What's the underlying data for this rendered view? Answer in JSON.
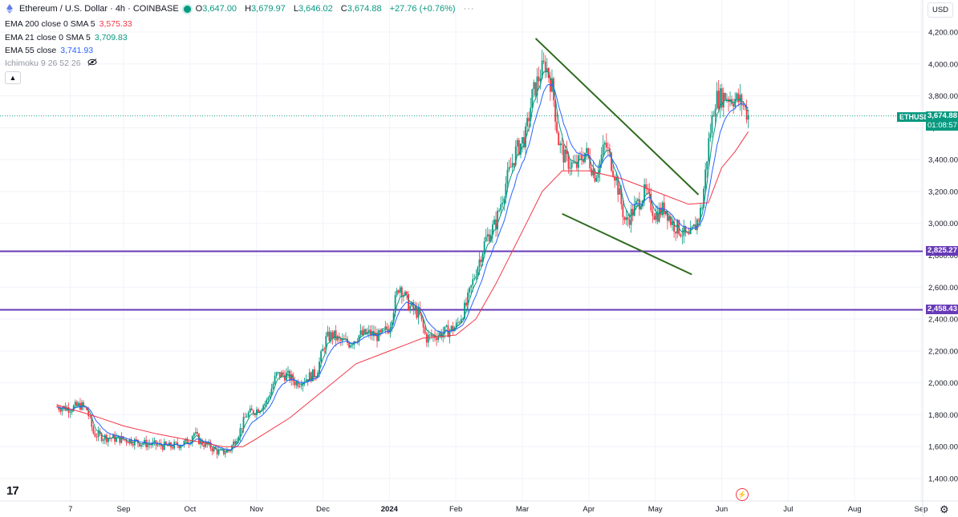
{
  "header": {
    "symbol_title": "Ethereum / U.S. Dollar · 4h · COINBASE",
    "open_label": "O",
    "open": "3,647.00",
    "high_label": "H",
    "high": "3,679.97",
    "low_label": "L",
    "low": "3,646.02",
    "close_label": "C",
    "close": "3,674.88",
    "change": "+27.76 (+0.76%)",
    "more": "···"
  },
  "indicators": [
    {
      "label": "EMA 200 close 0 SMA 5",
      "value": "3,575.33",
      "color": "#f23645"
    },
    {
      "label": "EMA 21 close 0 SMA 5",
      "value": "3,709.83",
      "color": "#089981"
    },
    {
      "label": "EMA 55 close",
      "value": "3,741.93",
      "color": "#2962ff"
    },
    {
      "label": "Ichimoku 9 26 52 26",
      "value": "",
      "color": "#9598a1"
    }
  ],
  "collapse_icon": "chevron-up-icon",
  "currency_button": "USD",
  "price_tag": {
    "symbol": "ETHUSD",
    "price": "3,674.88",
    "countdown": "01:08:57"
  },
  "horizontal_levels": [
    {
      "value": 2825.27,
      "label": "2,825.27",
      "color": "#673ab7"
    },
    {
      "value": 2458.43,
      "label": "2,458.43",
      "color": "#673ab7"
    }
  ],
  "colors": {
    "up": "#089981",
    "down": "#f23645",
    "ema21": "#089981",
    "ema55": "#2962ff",
    "ema200": "#f23645",
    "wedge": "#2e6b1e",
    "grid": "#f0f3fa",
    "axis_text": "#131722"
  },
  "chart_data": {
    "type": "candlestick",
    "timeframe": "4h",
    "y_ticks": [
      1400,
      1600,
      1800,
      2000,
      2200,
      2400,
      2600,
      2800,
      3000,
      3200,
      3400,
      3600,
      3800,
      4000,
      4200
    ],
    "y_tick_labels": [
      "1,400.00",
      "1,600.00",
      "1,800.00",
      "2,000.00",
      "2,200.00",
      "2,400.00",
      "2,600.00",
      "2,800.00",
      "3,000.00",
      "3,200.00",
      "3,400.00",
      "3,600.00",
      "3,800.00",
      "4,000.00",
      "4,200.00"
    ],
    "ylim": [
      1300,
      4300
    ],
    "x_labels": [
      "7",
      "Sep",
      "Oct",
      "Nov",
      "Dec",
      "2024",
      "Feb",
      "Mar",
      "Apr",
      "May",
      "Jun",
      "Jul",
      "Aug",
      "Sep"
    ],
    "x_label_months": [
      0.2,
      1,
      2,
      3,
      4,
      5,
      6,
      7,
      8,
      9,
      10,
      11,
      12,
      13
    ],
    "price_path": [
      [
        0.0,
        1850
      ],
      [
        0.2,
        1840
      ],
      [
        0.35,
        1860
      ],
      [
        0.45,
        1830
      ],
      [
        0.55,
        1680
      ],
      [
        0.7,
        1660
      ],
      [
        0.9,
        1650
      ],
      [
        1.1,
        1640
      ],
      [
        1.3,
        1620
      ],
      [
        1.5,
        1610
      ],
      [
        1.7,
        1600
      ],
      [
        1.9,
        1620
      ],
      [
        2.0,
        1640
      ],
      [
        2.05,
        1690
      ],
      [
        2.15,
        1630
      ],
      [
        2.3,
        1600
      ],
      [
        2.45,
        1560
      ],
      [
        2.6,
        1580
      ],
      [
        2.75,
        1700
      ],
      [
        2.85,
        1800
      ],
      [
        3.0,
        1830
      ],
      [
        3.15,
        1880
      ],
      [
        3.3,
        2050
      ],
      [
        3.45,
        2050
      ],
      [
        3.6,
        2000
      ],
      [
        3.75,
        2030
      ],
      [
        3.9,
        2060
      ],
      [
        4.05,
        2280
      ],
      [
        4.15,
        2300
      ],
      [
        4.25,
        2260
      ],
      [
        4.4,
        2250
      ],
      [
        4.55,
        2300
      ],
      [
        4.7,
        2310
      ],
      [
        4.85,
        2290
      ],
      [
        5.0,
        2350
      ],
      [
        5.05,
        2450
      ],
      [
        5.15,
        2620
      ],
      [
        5.3,
        2480
      ],
      [
        5.45,
        2430
      ],
      [
        5.55,
        2280
      ],
      [
        5.7,
        2300
      ],
      [
        5.85,
        2320
      ],
      [
        6.0,
        2350
      ],
      [
        6.15,
        2480
      ],
      [
        6.3,
        2700
      ],
      [
        6.45,
        2900
      ],
      [
        6.6,
        3000
      ],
      [
        6.75,
        3250
      ],
      [
        6.9,
        3450
      ],
      [
        7.05,
        3550
      ],
      [
        7.15,
        3800
      ],
      [
        7.28,
        3950
      ],
      [
        7.35,
        4000
      ],
      [
        7.45,
        3850
      ],
      [
        7.55,
        3500
      ],
      [
        7.65,
        3400
      ],
      [
        7.8,
        3350
      ],
      [
        7.95,
        3450
      ],
      [
        8.1,
        3300
      ],
      [
        8.25,
        3500
      ],
      [
        8.4,
        3300
      ],
      [
        8.55,
        3000
      ],
      [
        8.7,
        3100
      ],
      [
        8.85,
        3200
      ],
      [
        9.0,
        3050
      ],
      [
        9.15,
        3100
      ],
      [
        9.25,
        3000
      ],
      [
        9.4,
        2950
      ],
      [
        9.5,
        2900
      ],
      [
        9.6,
        2980
      ],
      [
        9.7,
        3100
      ],
      [
        9.8,
        3500
      ],
      [
        9.9,
        3780
      ],
      [
        10.05,
        3800
      ],
      [
        10.2,
        3780
      ],
      [
        10.3,
        3760
      ],
      [
        10.4,
        3674.88
      ]
    ],
    "ema200_path": [
      [
        0.0,
        1860
      ],
      [
        0.5,
        1800
      ],
      [
        1.0,
        1730
      ],
      [
        1.5,
        1680
      ],
      [
        2.0,
        1640
      ],
      [
        2.5,
        1600
      ],
      [
        2.8,
        1600
      ],
      [
        3.0,
        1650
      ],
      [
        3.5,
        1780
      ],
      [
        4.0,
        1950
      ],
      [
        4.5,
        2120
      ],
      [
        5.0,
        2200
      ],
      [
        5.5,
        2280
      ],
      [
        6.0,
        2300
      ],
      [
        6.3,
        2400
      ],
      [
        6.6,
        2620
      ],
      [
        7.0,
        2950
      ],
      [
        7.3,
        3200
      ],
      [
        7.6,
        3330
      ],
      [
        8.0,
        3330
      ],
      [
        8.5,
        3280
      ],
      [
        9.0,
        3200
      ],
      [
        9.5,
        3120
      ],
      [
        9.8,
        3130
      ],
      [
        10.0,
        3350
      ],
      [
        10.2,
        3450
      ],
      [
        10.4,
        3575.33
      ]
    ]
  },
  "wedge_lines": [
    {
      "from": [
        7.2,
        4160
      ],
      "to": [
        9.65,
        3180
      ]
    },
    {
      "from": [
        7.6,
        3060
      ],
      "to": [
        9.55,
        2680
      ]
    }
  ]
}
